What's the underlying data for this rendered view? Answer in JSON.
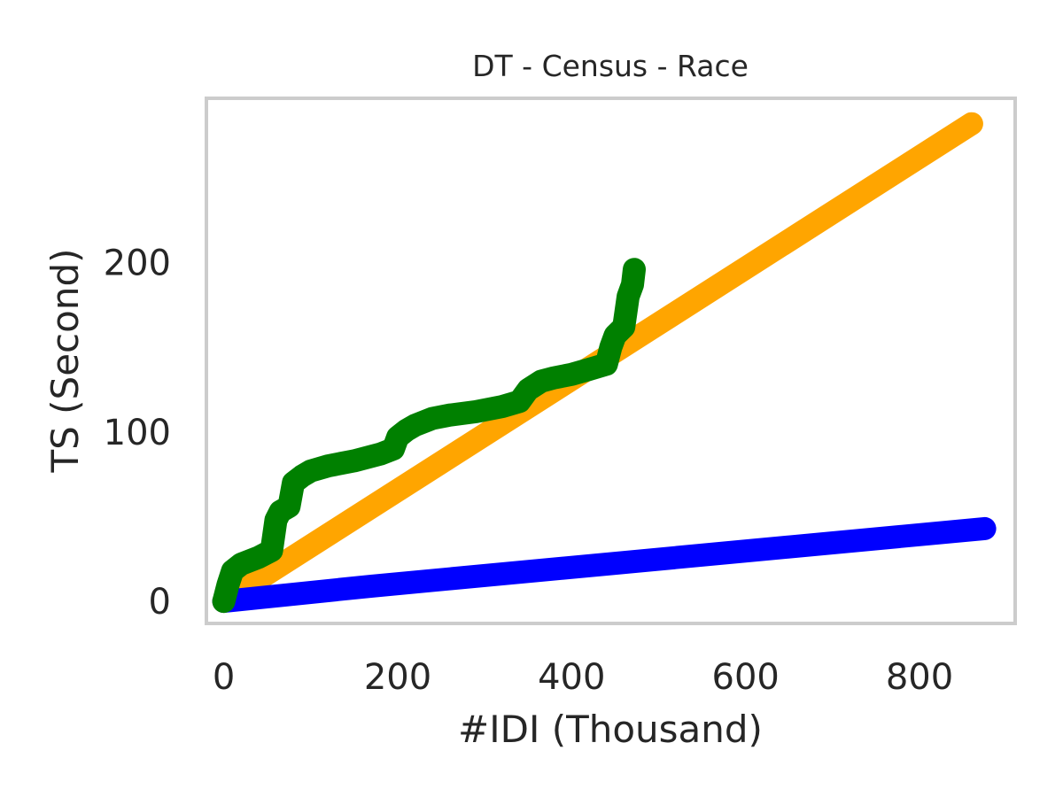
{
  "chart_data": {
    "type": "line",
    "title": "DT - Census - Race",
    "xlabel": "#IDI (Thousand)",
    "ylabel": "TS (Second)",
    "xlim": [
      -20,
      910
    ],
    "ylim": [
      -13,
      297
    ],
    "xticks": [
      0,
      200,
      400,
      600,
      800
    ],
    "yticks": [
      0,
      100,
      200
    ],
    "grid": false,
    "legend": "none",
    "series": [
      {
        "color": "#ffa500",
        "x": [
          0,
          860
        ],
        "y": [
          0,
          282
        ]
      },
      {
        "color": "#0000ff",
        "x": [
          0,
          170,
          875
        ],
        "y": [
          0,
          9,
          43
        ]
      },
      {
        "color": "#008000",
        "x": [
          0,
          5,
          10,
          20,
          40,
          55,
          60,
          65,
          75,
          80,
          90,
          100,
          120,
          150,
          180,
          195,
          200,
          210,
          220,
          240,
          260,
          290,
          320,
          340,
          350,
          365,
          380,
          400,
          420,
          440,
          445,
          450,
          460,
          465,
          470,
          472
        ],
        "y": [
          0,
          10,
          18,
          22,
          26,
          30,
          48,
          53,
          56,
          70,
          74,
          77,
          80,
          83,
          87,
          90,
          97,
          101,
          104,
          108,
          110,
          112,
          115,
          118,
          125,
          130,
          132,
          134,
          137,
          140,
          150,
          157,
          162,
          180,
          187,
          196
        ]
      }
    ]
  }
}
